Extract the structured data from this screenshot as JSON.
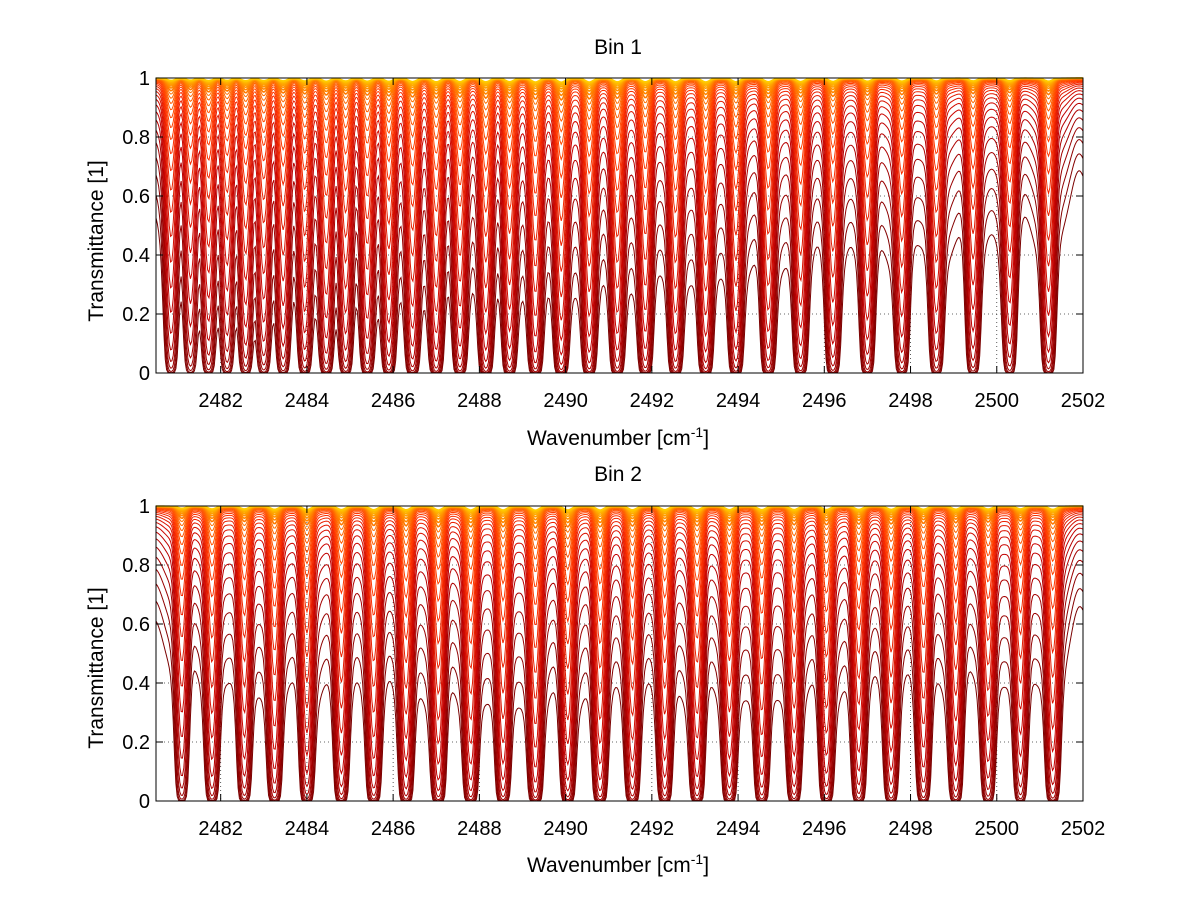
{
  "chart_data": [
    {
      "type": "line",
      "title": "Bin 1",
      "xlabel": "Wavenumber [cm",
      "xlabel_sup": "-1",
      "xlabel_end": "]",
      "ylabel": "Transmittance [1]",
      "xlim": [
        2480.5,
        2502
      ],
      "ylim": [
        0,
        1
      ],
      "xticks": [
        2482,
        2484,
        2486,
        2488,
        2490,
        2492,
        2494,
        2496,
        2498,
        2500,
        2502
      ],
      "yticks": [
        0,
        0.2,
        0.4,
        0.6,
        0.8,
        1
      ],
      "xtick_labels": [
        "2482",
        "2484",
        "2486",
        "2488",
        "2490",
        "2492",
        "2494",
        "2496",
        "2498",
        "2500",
        "2502"
      ],
      "ytick_labels": [
        "0",
        "0.2",
        "0.4",
        "0.6",
        "0.8",
        "1"
      ],
      "grid": true,
      "series_count": 30,
      "series_colormap": [
        "#7a0000",
        "#c40000",
        "#ff3300",
        "#ff7700",
        "#ffcc00"
      ],
      "absorption_lines": [
        {
          "x": 2480.85,
          "depth": 0.55
        },
        {
          "x": 2481.3,
          "depth": 0.5
        },
        {
          "x": 2481.72,
          "depth": 0.6
        },
        {
          "x": 2482.15,
          "depth": 0.55
        },
        {
          "x": 2482.58,
          "depth": 0.65
        },
        {
          "x": 2483.0,
          "depth": 0.6
        },
        {
          "x": 2483.45,
          "depth": 0.65
        },
        {
          "x": 2483.95,
          "depth": 0.7
        },
        {
          "x": 2484.45,
          "depth": 0.75
        },
        {
          "x": 2484.9,
          "depth": 0.7
        },
        {
          "x": 2485.4,
          "depth": 0.75
        },
        {
          "x": 2485.9,
          "depth": 0.8
        },
        {
          "x": 2486.45,
          "depth": 0.85
        },
        {
          "x": 2487.0,
          "depth": 0.9
        },
        {
          "x": 2487.55,
          "depth": 0.85
        },
        {
          "x": 2488.15,
          "depth": 0.9
        },
        {
          "x": 2488.7,
          "depth": 0.88
        },
        {
          "x": 2489.3,
          "depth": 0.95
        },
        {
          "x": 2489.9,
          "depth": 1.0
        },
        {
          "x": 2490.55,
          "depth": 0.95
        },
        {
          "x": 2491.2,
          "depth": 0.92
        },
        {
          "x": 2491.85,
          "depth": 0.9
        },
        {
          "x": 2492.55,
          "depth": 0.92
        },
        {
          "x": 2493.25,
          "depth": 0.95
        },
        {
          "x": 2493.95,
          "depth": 0.9
        },
        {
          "x": 2494.7,
          "depth": 0.9
        },
        {
          "x": 2495.45,
          "depth": 0.85
        },
        {
          "x": 2496.2,
          "depth": 0.82
        },
        {
          "x": 2497.0,
          "depth": 0.78
        },
        {
          "x": 2497.8,
          "depth": 0.75
        },
        {
          "x": 2498.6,
          "depth": 0.72
        },
        {
          "x": 2499.45,
          "depth": 0.7
        },
        {
          "x": 2500.3,
          "depth": 0.65
        },
        {
          "x": 2501.2,
          "depth": 0.75
        }
      ]
    },
    {
      "type": "line",
      "title": "Bin 2",
      "xlabel": "Wavenumber [cm",
      "xlabel_sup": "-1",
      "xlabel_end": "]",
      "ylabel": "Transmittance [1]",
      "xlim": [
        2480.5,
        2502
      ],
      "ylim": [
        0,
        1
      ],
      "xticks": [
        2482,
        2484,
        2486,
        2488,
        2490,
        2492,
        2494,
        2496,
        2498,
        2500,
        2502
      ],
      "yticks": [
        0,
        0.2,
        0.4,
        0.6,
        0.8,
        1
      ],
      "xtick_labels": [
        "2482",
        "2484",
        "2486",
        "2488",
        "2490",
        "2492",
        "2494",
        "2496",
        "2498",
        "2500",
        "2502"
      ],
      "ytick_labels": [
        "0",
        "0.2",
        "0.4",
        "0.6",
        "0.8",
        "1"
      ],
      "grid": true,
      "series_count": 30,
      "series_colormap": [
        "#7a0000",
        "#c40000",
        "#ff3300",
        "#ff7700",
        "#ffcc00"
      ],
      "absorption_lines": [
        {
          "x": 2481.1,
          "depth": 0.55
        },
        {
          "x": 2481.8,
          "depth": 0.7
        },
        {
          "x": 2482.55,
          "depth": 0.7
        },
        {
          "x": 2483.25,
          "depth": 0.8
        },
        {
          "x": 2484.0,
          "depth": 0.85
        },
        {
          "x": 2484.8,
          "depth": 0.85
        },
        {
          "x": 2485.55,
          "depth": 0.88
        },
        {
          "x": 2486.3,
          "depth": 0.9
        },
        {
          "x": 2487.05,
          "depth": 0.95
        },
        {
          "x": 2487.8,
          "depth": 0.95
        },
        {
          "x": 2488.55,
          "depth": 0.95
        },
        {
          "x": 2489.3,
          "depth": 1.0
        },
        {
          "x": 2490.05,
          "depth": 0.95
        },
        {
          "x": 2490.8,
          "depth": 0.95
        },
        {
          "x": 2491.55,
          "depth": 0.9
        },
        {
          "x": 2492.3,
          "depth": 0.9
        },
        {
          "x": 2493.05,
          "depth": 0.9
        },
        {
          "x": 2493.8,
          "depth": 0.88
        },
        {
          "x": 2494.55,
          "depth": 0.88
        },
        {
          "x": 2495.3,
          "depth": 0.85
        },
        {
          "x": 2496.05,
          "depth": 0.85
        },
        {
          "x": 2496.8,
          "depth": 0.82
        },
        {
          "x": 2497.55,
          "depth": 0.8
        },
        {
          "x": 2498.3,
          "depth": 0.78
        },
        {
          "x": 2499.05,
          "depth": 0.75
        },
        {
          "x": 2499.8,
          "depth": 0.72
        },
        {
          "x": 2500.55,
          "depth": 0.68
        },
        {
          "x": 2501.3,
          "depth": 0.82
        }
      ]
    }
  ]
}
